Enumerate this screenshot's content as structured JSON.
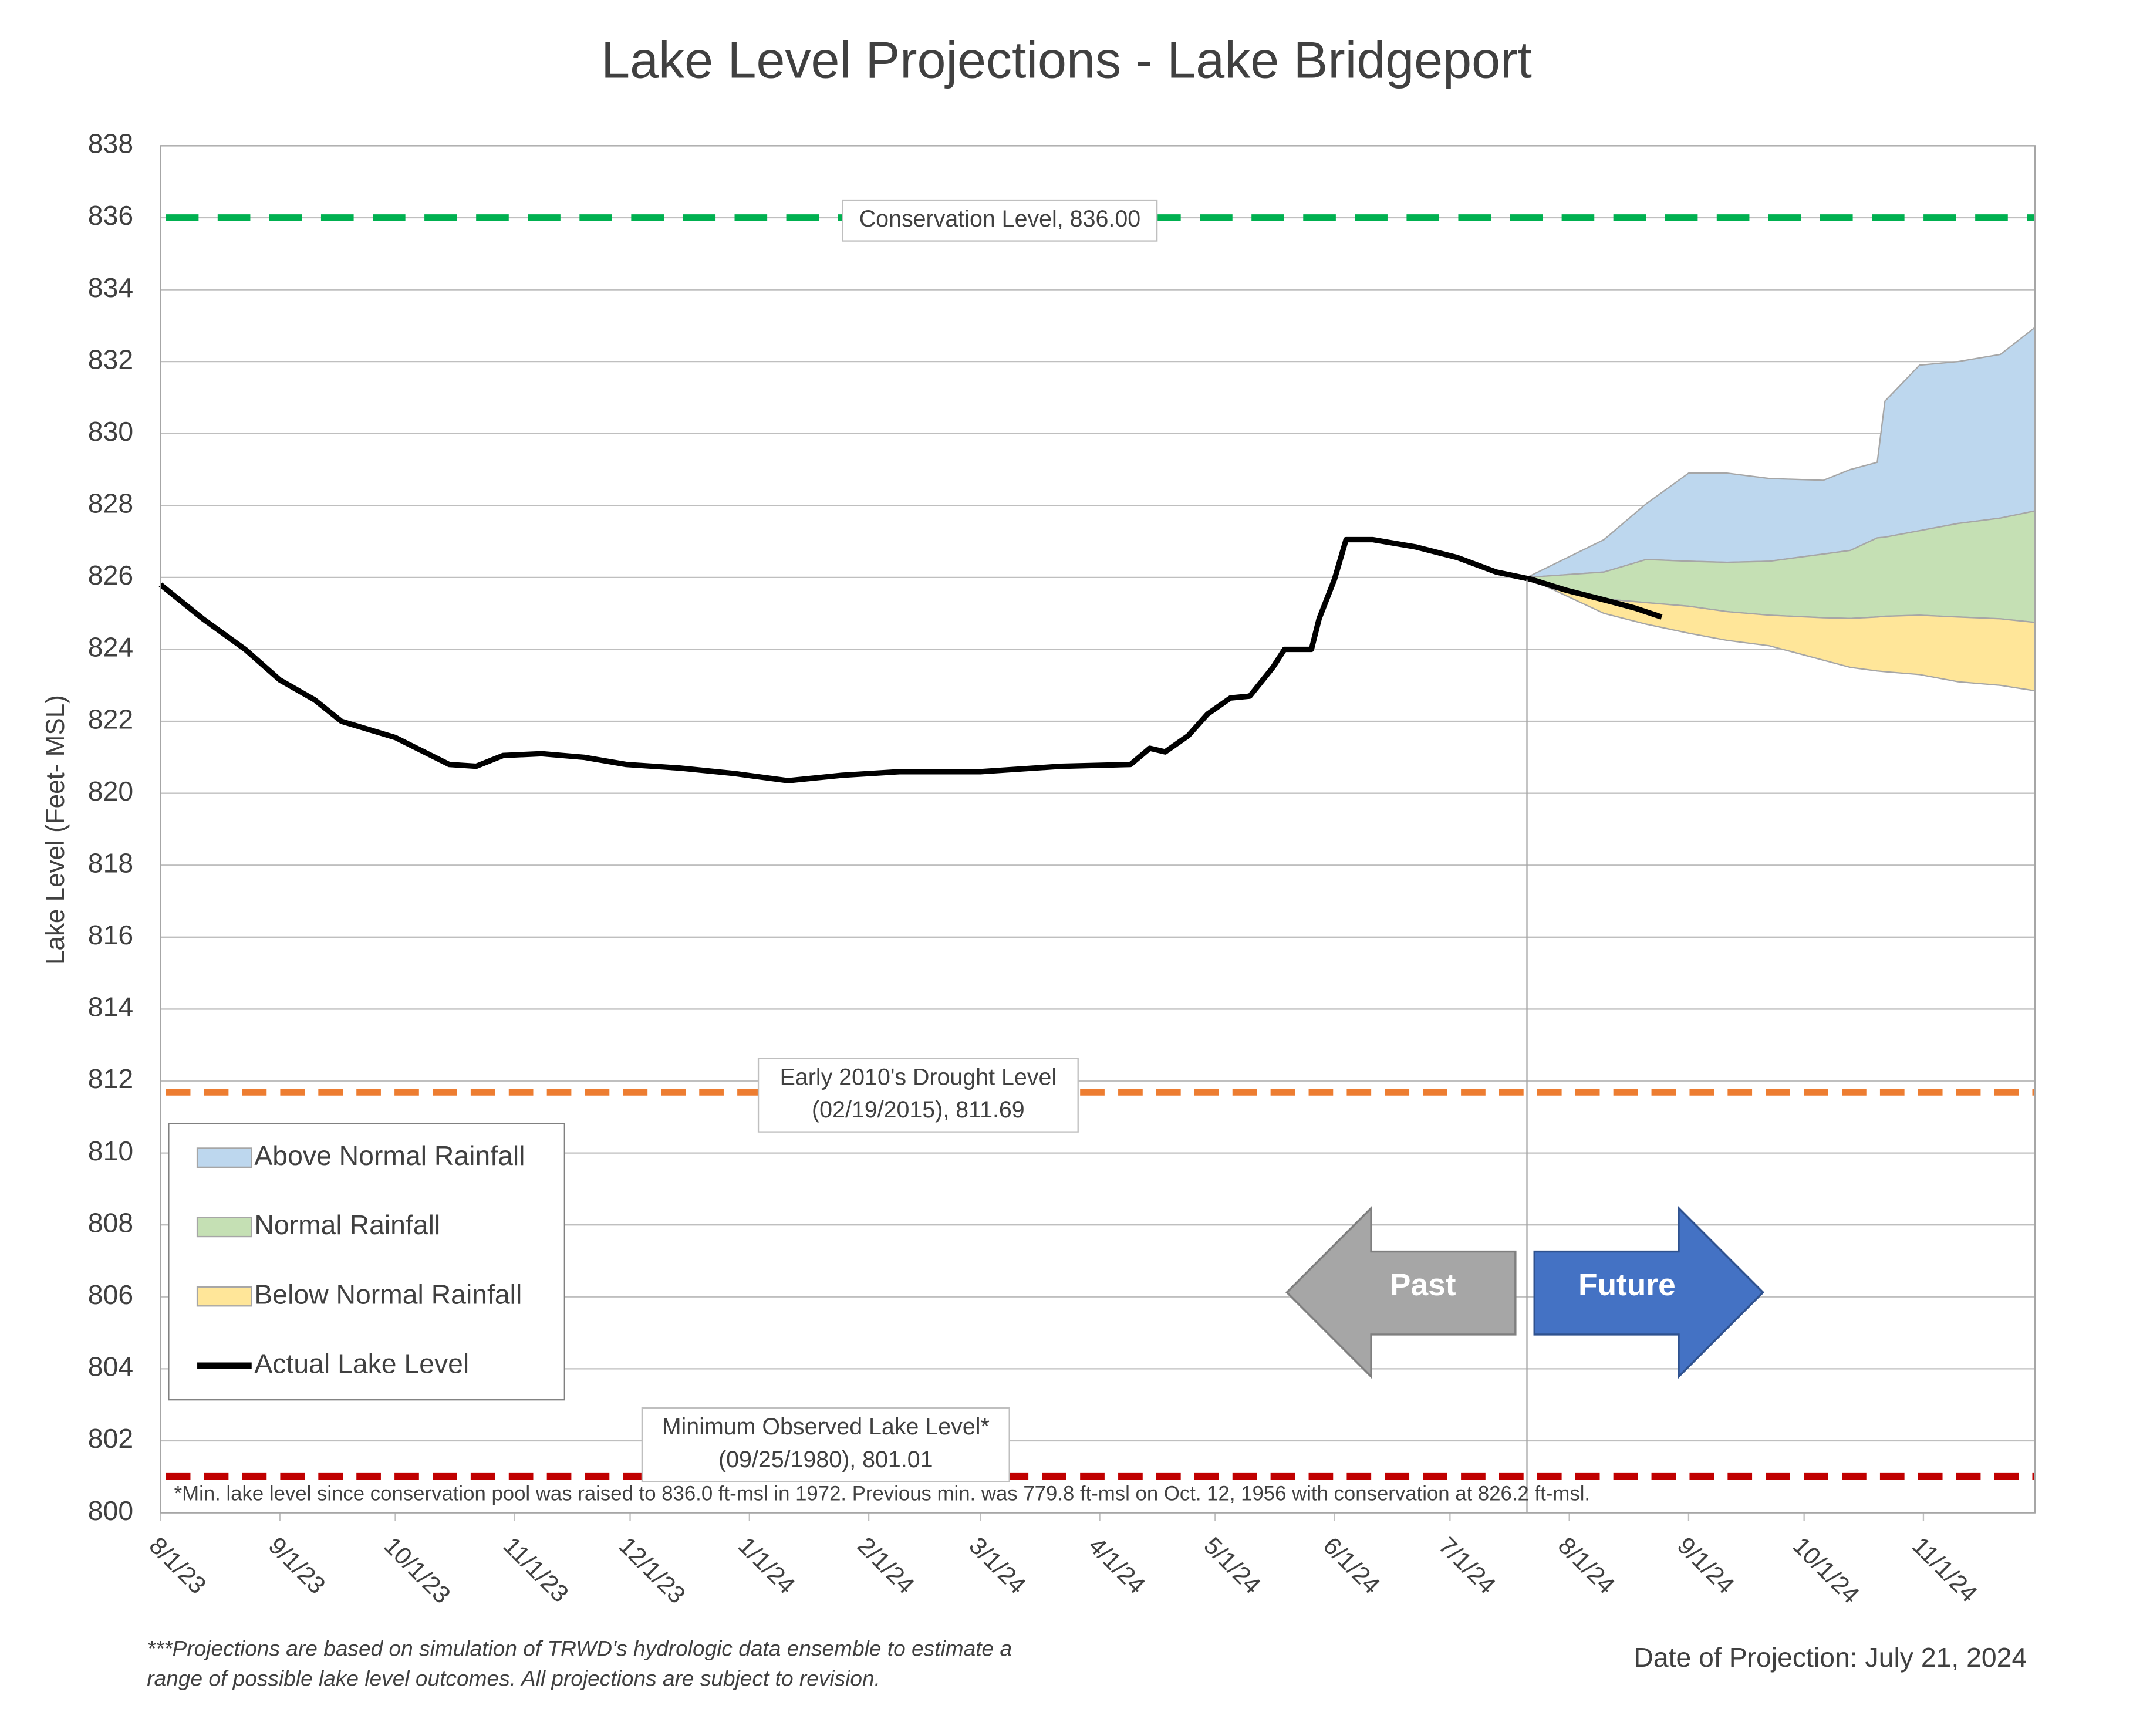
{
  "chart_data": {
    "type": "line",
    "title": "Lake Level Projections - Lake Bridgeport",
    "y_label": "Lake Level (Feet- MSL)",
    "xlim": [
      "2023-08-01",
      "2024-11-30"
    ],
    "ylim": [
      800,
      838
    ],
    "yticks": [
      800,
      802,
      804,
      806,
      808,
      810,
      812,
      814,
      816,
      818,
      820,
      822,
      824,
      826,
      828,
      830,
      832,
      834,
      836,
      838
    ],
    "xticks": [
      {
        "value": "2023-08-01",
        "label": "8/1/23"
      },
      {
        "value": "2023-09-01",
        "label": "9/1/23"
      },
      {
        "value": "2023-10-01",
        "label": "10/1/23"
      },
      {
        "value": "2023-11-01",
        "label": "11/1/23"
      },
      {
        "value": "2023-12-01",
        "label": "12/1/23"
      },
      {
        "value": "2024-01-01",
        "label": "1/1/24"
      },
      {
        "value": "2024-02-01",
        "label": "2/1/24"
      },
      {
        "value": "2024-03-01",
        "label": "3/1/24"
      },
      {
        "value": "2024-04-01",
        "label": "4/1/24"
      },
      {
        "value": "2024-05-01",
        "label": "5/1/24"
      },
      {
        "value": "2024-06-01",
        "label": "6/1/24"
      },
      {
        "value": "2024-07-01",
        "label": "7/1/24"
      },
      {
        "value": "2024-08-01",
        "label": "8/1/24"
      },
      {
        "value": "2024-09-01",
        "label": "9/1/24"
      },
      {
        "value": "2024-10-01",
        "label": "10/1/24"
      },
      {
        "value": "2024-11-01",
        "label": "11/1/24"
      }
    ],
    "grid": true,
    "divider_x": "2024-07-21",
    "projection_x": [
      "2024-07-21",
      "2024-08-10",
      "2024-08-21",
      "2024-09-01",
      "2024-09-11",
      "2024-09-22",
      "2024-10-06",
      "2024-10-13",
      "2024-10-20",
      "2024-10-22",
      "2024-10-31",
      "2024-11-10",
      "2024-11-21",
      "2024-11-30"
    ],
    "bands": [
      {
        "name": "Above Normal Rainfall",
        "color": "#bdd7ee",
        "low": [
          826,
          826.15,
          826.5,
          826.45,
          826.42,
          826.45,
          826.65,
          826.75,
          827.1,
          827.12,
          827.3,
          827.5,
          827.65,
          827.85
        ],
        "high": [
          826,
          827.05,
          828.05,
          828.9,
          828.9,
          828.75,
          828.7,
          829.0,
          829.2,
          830.9,
          831.9,
          832.0,
          832.2,
          832.95
        ]
      },
      {
        "name": "Normal Rainfall",
        "color": "#c5e0b4",
        "low": [
          826,
          825.4,
          825.3,
          825.2,
          825.05,
          824.95,
          824.88,
          824.86,
          824.9,
          824.92,
          824.95,
          824.9,
          824.85,
          824.75
        ],
        "high": [
          826,
          826.15,
          826.5,
          826.45,
          826.42,
          826.45,
          826.65,
          826.75,
          827.1,
          827.12,
          827.3,
          827.5,
          827.65,
          827.85
        ]
      },
      {
        "name": "Below Normal Rainfall",
        "color": "#ffe699",
        "low": [
          826,
          825.0,
          824.7,
          824.45,
          824.25,
          824.1,
          823.7,
          823.5,
          823.4,
          823.38,
          823.3,
          823.1,
          823.0,
          822.85
        ],
        "high": [
          826,
          825.4,
          825.3,
          825.2,
          825.05,
          824.95,
          824.88,
          824.86,
          824.9,
          824.92,
          824.95,
          824.9,
          824.85,
          824.75
        ]
      }
    ],
    "series": [
      {
        "name": "Actual Lake Level",
        "color": "#000000",
        "x": [
          "2023-08-01",
          "2023-08-12",
          "2023-08-23",
          "2023-09-01",
          "2023-09-10",
          "2023-09-17",
          "2023-10-01",
          "2023-10-15",
          "2023-10-22",
          "2023-10-29",
          "2023-11-08",
          "2023-11-19",
          "2023-11-30",
          "2023-12-14",
          "2023-12-28",
          "2024-01-11",
          "2024-01-25",
          "2024-02-09",
          "2024-03-01",
          "2024-03-22",
          "2024-04-09",
          "2024-04-14",
          "2024-04-18",
          "2024-04-24",
          "2024-04-29",
          "2024-05-05",
          "2024-05-10",
          "2024-05-16",
          "2024-05-19",
          "2024-05-26",
          "2024-05-28",
          "2024-06-01",
          "2024-06-04",
          "2024-06-11",
          "2024-06-22",
          "2024-07-03",
          "2024-07-13",
          "2024-07-22",
          "2024-07-31",
          "2024-08-11",
          "2024-08-18",
          "2024-08-25"
        ],
        "values": [
          825.8,
          824.85,
          824.0,
          823.15,
          822.6,
          822.0,
          821.55,
          820.8,
          820.75,
          821.05,
          821.1,
          821.0,
          820.8,
          820.7,
          820.55,
          820.35,
          820.5,
          820.6,
          820.6,
          820.75,
          820.8,
          821.25,
          821.15,
          821.6,
          822.2,
          822.65,
          822.7,
          823.5,
          824.0,
          824.0,
          824.85,
          825.95,
          827.05,
          827.05,
          826.85,
          826.55,
          826.15,
          825.95,
          825.65,
          825.35,
          825.15,
          824.9
        ]
      }
    ],
    "reference_lines": [
      {
        "value": 836,
        "color": "#00b050",
        "label": [
          "Conservation Level, 836.00"
        ]
      },
      {
        "value": 811.69,
        "color": "#ed7d31",
        "label": [
          "Early 2010's Drought Level",
          "(02/19/2015), 811.69"
        ]
      },
      {
        "value": 801.01,
        "color": "#c00000",
        "label": [
          "Minimum Observed Lake Level*",
          "(09/25/1980), 801.01"
        ]
      }
    ],
    "arrows": [
      "Past",
      "Future"
    ],
    "footnote": "*Min. lake level since conservation pool was raised to 836.0 ft-msl in 1972.  Previous min. was 779.8 ft-msl on Oct. 12, 1956 with conservation at 826.2 ft-msl.",
    "notes": [
      "***Projections are based on simulation of TRWD's hydrologic data ensemble to estimate a",
      "range of possible lake level outcomes.  All projections are subject to revision."
    ],
    "date_of_projection": "Date of Projection: July 21, 2024"
  }
}
